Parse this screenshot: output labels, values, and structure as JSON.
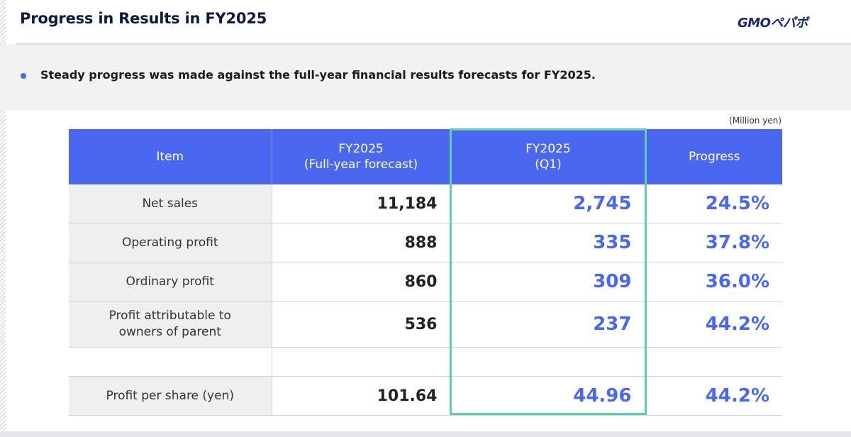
{
  "header": {
    "title": "Progress in Results in FY2025",
    "logo_text": "GMOペパボ"
  },
  "bullet": {
    "text": "Steady progress was made against the full-year financial results forecasts for FY2025."
  },
  "table": {
    "unit": "(Million yen)",
    "columns": [
      {
        "line1": "Item",
        "line2": ""
      },
      {
        "line1": "FY2025",
        "line2": "(Full-year forecast)"
      },
      {
        "line1": "FY2025",
        "line2": "(Q1)"
      },
      {
        "line1": "Progress",
        "line2": ""
      }
    ],
    "rows": [
      {
        "item_line1": "Net sales",
        "item_line2": "",
        "forecast": "11,184",
        "q1": "2,745",
        "progress": "24.5%"
      },
      {
        "item_line1": "Operating profit",
        "item_line2": "",
        "forecast": "888",
        "q1": "335",
        "progress": "37.8%"
      },
      {
        "item_line1": "Ordinary profit",
        "item_line2": "",
        "forecast": "860",
        "q1": "309",
        "progress": "36.0%"
      },
      {
        "item_line1": "Profit attributable to",
        "item_line2": "owners of parent",
        "forecast": "536",
        "q1": "237",
        "progress": "44.2%"
      },
      {
        "item_line1": "Profit per share (yen)",
        "item_line2": "",
        "forecast": "101.64",
        "q1": "44.96",
        "progress": "44.2%"
      }
    ]
  },
  "colors": {
    "header_blue": "#4a67f0",
    "highlight_green": "#5fcfa9",
    "item_bg": "#efeff0"
  }
}
